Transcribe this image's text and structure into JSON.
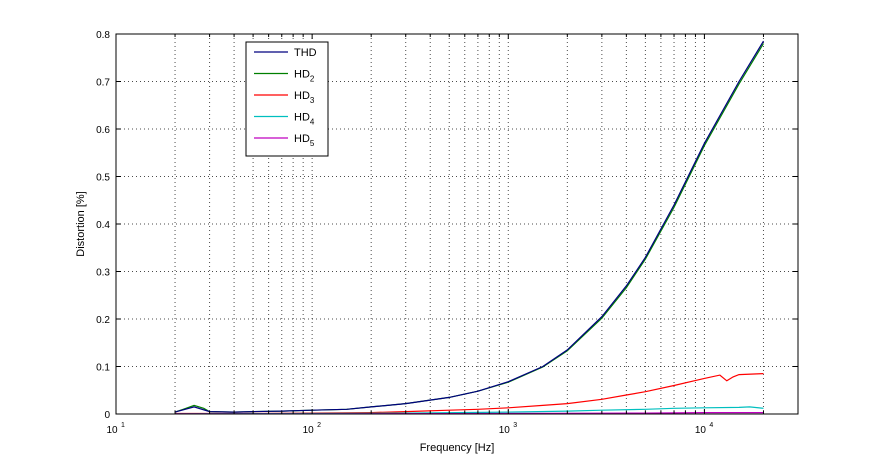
{
  "chart_data": {
    "type": "line",
    "xlabel": "Frequency [Hz]",
    "ylabel": "Distortion [%]",
    "x_scale": "log",
    "xlim": [
      10,
      30000
    ],
    "ylim": [
      0,
      0.8
    ],
    "grid": true,
    "legend_position": "top-left",
    "x_ticks": [
      {
        "value": 10,
        "base": "10",
        "exp": "1"
      },
      {
        "value": 100,
        "base": "10",
        "exp": "2"
      },
      {
        "value": 1000,
        "base": "10",
        "exp": "3"
      },
      {
        "value": 10000,
        "base": "10",
        "exp": "4"
      }
    ],
    "y_ticks": [
      "0",
      "0.1",
      "0.2",
      "0.3",
      "0.4",
      "0.5",
      "0.6",
      "0.7",
      "0.8"
    ],
    "series": [
      {
        "name": "THD",
        "legend_base": "HD",
        "legend_sub": "",
        "color": "#00007f",
        "x": [
          20,
          25,
          30,
          40,
          50,
          70,
          100,
          150,
          200,
          300,
          500,
          700,
          1000,
          1500,
          2000,
          3000,
          4000,
          5000,
          7000,
          10000,
          15000,
          20000
        ],
        "y": [
          0.004,
          0.015,
          0.005,
          0.004,
          0.005,
          0.006,
          0.008,
          0.01,
          0.015,
          0.022,
          0.035,
          0.048,
          0.068,
          0.1,
          0.135,
          0.205,
          0.27,
          0.33,
          0.44,
          0.57,
          0.7,
          0.785
        ]
      },
      {
        "name": "HD2",
        "legend_base": "HD",
        "legend_sub": "2",
        "color": "#007f00",
        "x": [
          20,
          22,
          25,
          28,
          30,
          40,
          50,
          70,
          100,
          150,
          200,
          300,
          500,
          700,
          1000,
          1500,
          2000,
          3000,
          4000,
          5000,
          7000,
          10000,
          15000,
          20000
        ],
        "y": [
          0.004,
          0.01,
          0.018,
          0.012,
          0.005,
          0.004,
          0.005,
          0.006,
          0.008,
          0.01,
          0.015,
          0.022,
          0.035,
          0.048,
          0.067,
          0.099,
          0.133,
          0.202,
          0.266,
          0.326,
          0.435,
          0.565,
          0.695,
          0.78
        ]
      },
      {
        "name": "HD3",
        "legend_base": "HD",
        "legend_sub": "3",
        "color": "#ff0000",
        "x": [
          20,
          50,
          100,
          200,
          300,
          500,
          700,
          1000,
          1500,
          2000,
          3000,
          4000,
          5000,
          7000,
          10000,
          12000,
          13000,
          14000,
          15000,
          20000
        ],
        "y": [
          0.001,
          0.001,
          0.002,
          0.003,
          0.005,
          0.008,
          0.01,
          0.013,
          0.018,
          0.022,
          0.031,
          0.04,
          0.047,
          0.06,
          0.075,
          0.082,
          0.07,
          0.078,
          0.083,
          0.085
        ]
      },
      {
        "name": "HD4",
        "legend_base": "HD",
        "legend_sub": "4",
        "color": "#00bfbf",
        "x": [
          20,
          100,
          300,
          1000,
          2000,
          3000,
          5000,
          7000,
          10000,
          15000,
          17000,
          20000
        ],
        "y": [
          0.0005,
          0.001,
          0.002,
          0.004,
          0.006,
          0.008,
          0.01,
          0.012,
          0.013,
          0.014,
          0.015,
          0.012
        ]
      },
      {
        "name": "HD5",
        "legend_base": "HD",
        "legend_sub": "5",
        "color": "#bf00bf",
        "x": [
          20,
          100,
          1000,
          5000,
          10000,
          20000
        ],
        "y": [
          0.0003,
          0.0005,
          0.001,
          0.002,
          0.003,
          0.003
        ]
      }
    ]
  }
}
